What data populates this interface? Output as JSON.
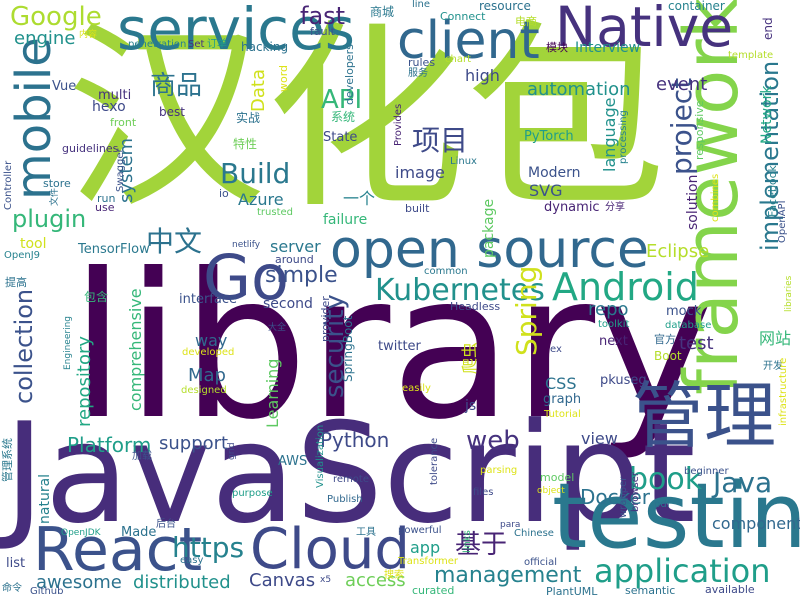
{
  "words": [
    {
      "text": "library",
      "color": "#440154",
      "rotate": false
    },
    {
      "text": "JavaScript",
      "color": "#472d7b",
      "rotate": false
    },
    {
      "text": "汉化包",
      "color": "#a2d43a",
      "rotate": false
    },
    {
      "text": "framework",
      "color": "#84d44b",
      "rotate": true
    },
    {
      "text": "testing",
      "color": "#2a788e",
      "rotate": false
    },
    {
      "text": "open source",
      "color": "#31688e",
      "rotate": false
    },
    {
      "text": "管理",
      "color": "#3b528b",
      "rotate": false
    },
    {
      "text": "Go",
      "color": "#3e4a89",
      "rotate": false
    },
    {
      "text": "client",
      "color": "#31688e",
      "rotate": false
    },
    {
      "text": "services",
      "color": "#2a788e",
      "rotate": false
    },
    {
      "text": "Native",
      "color": "#46327e",
      "rotate": false
    },
    {
      "text": "React",
      "color": "#3b528b",
      "rotate": false
    },
    {
      "text": "Cloud",
      "color": "#3e4a89",
      "rotate": false
    },
    {
      "text": "mobile",
      "color": "#2c728e",
      "rotate": true
    },
    {
      "text": "Android",
      "color": "#22a884",
      "rotate": false
    },
    {
      "text": "Kubernetes",
      "color": "#21918c",
      "rotate": false
    },
    {
      "text": "application",
      "color": "#1f9e89",
      "rotate": false
    },
    {
      "text": "Google",
      "color": "#addc30",
      "rotate": false
    },
    {
      "text": "API",
      "color": "#35b779",
      "rotate": false
    },
    {
      "text": "Build",
      "color": "#2a788e",
      "rotate": false
    },
    {
      "text": "security",
      "color": "#3b528b",
      "rotate": true
    },
    {
      "text": "book",
      "color": "#1f9e89",
      "rotate": false
    },
    {
      "text": "Java",
      "color": "#2c728e",
      "rotate": false
    },
    {
      "text": "https",
      "color": "#26828e",
      "rotate": false
    },
    {
      "text": "基于",
      "color": "#482475",
      "rotate": false
    },
    {
      "text": "项目",
      "color": "#3e4a89",
      "rotate": false
    },
    {
      "text": "中文",
      "color": "#2c728e",
      "rotate": false
    },
    {
      "text": "商品",
      "color": "#2c728e",
      "rotate": false
    },
    {
      "text": "simple",
      "color": "#3b528b",
      "rotate": false
    },
    {
      "text": "collection",
      "color": "#3b528b",
      "rotate": true
    },
    {
      "text": "project",
      "color": "#3b528b",
      "rotate": true
    },
    {
      "text": "implementation",
      "color": "#2a788e",
      "rotate": true
    },
    {
      "text": "management",
      "color": "#26828e",
      "rotate": false
    },
    {
      "text": "Spring",
      "color": "#d0e11c",
      "rotate": true
    },
    {
      "text": "fast",
      "color": "#482475",
      "rotate": false
    },
    {
      "text": "web",
      "color": "#46327e",
      "rotate": false
    },
    {
      "text": "plugin",
      "color": "#35b779",
      "rotate": false
    },
    {
      "text": "Docker",
      "color": "#2c728e",
      "rotate": false
    },
    {
      "text": "Python",
      "color": "#3e4a89",
      "rotate": false
    },
    {
      "text": "Platform",
      "color": "#1f9e89",
      "rotate": false
    },
    {
      "text": "automation",
      "color": "#21918c",
      "rotate": false
    },
    {
      "text": "engine",
      "color": "#21918c",
      "rotate": false
    },
    {
      "text": "repository",
      "color": "#22a884",
      "rotate": true
    },
    {
      "text": "event",
      "color": "#46327e",
      "rotate": false
    },
    {
      "text": "test",
      "color": "#46327e",
      "rotate": false
    },
    {
      "text": "Canvas",
      "color": "#3e4a89",
      "rotate": false
    },
    {
      "text": "distributed",
      "color": "#21918c",
      "rotate": false
    },
    {
      "text": "awesome",
      "color": "#2c728e",
      "rotate": false
    },
    {
      "text": "system",
      "color": "#2c728e",
      "rotate": true
    },
    {
      "text": "server",
      "color": "#2a788e",
      "rotate": false
    },
    {
      "text": "Data",
      "color": "#d0e11c",
      "rotate": true
    },
    {
      "text": "image",
      "color": "#3e4a89",
      "rotate": false
    },
    {
      "text": "Eclipse",
      "color": "#b5de2b",
      "rotate": false
    },
    {
      "text": "access",
      "color": "#6ece58",
      "rotate": false
    },
    {
      "text": "Map",
      "color": "#31688e",
      "rotate": false
    },
    {
      "text": "support",
      "color": "#3b528b",
      "rotate": false
    },
    {
      "text": "repo",
      "color": "#2a788e",
      "rotate": false
    },
    {
      "text": "view",
      "color": "#3e4a89",
      "rotate": false
    },
    {
      "text": "component",
      "color": "#31688e",
      "rotate": false
    },
    {
      "text": "Azure",
      "color": "#2a788e",
      "rotate": false
    },
    {
      "text": "comprehensive",
      "color": "#35b779",
      "rotate": true
    },
    {
      "text": "natural",
      "color": "#26828e",
      "rotate": true
    },
    {
      "text": "language",
      "color": "#21918c",
      "rotate": true
    },
    {
      "text": "SVG",
      "color": "#3b528b",
      "rotate": false
    },
    {
      "text": "app",
      "color": "#1f9e89",
      "rotate": false
    },
    {
      "text": "CSS",
      "color": "#2c728e",
      "rotate": false
    },
    {
      "text": "Learning",
      "color": "#5ec962",
      "rotate": true
    },
    {
      "text": "网站",
      "color": "#35b779",
      "rotate": false
    },
    {
      "text": "爬虫",
      "color": "#d0e11c",
      "rotate": true
    },
    {
      "text": "一个",
      "color": "#26828e",
      "rotate": false
    },
    {
      "text": "way",
      "color": "#31688e",
      "rotate": false
    },
    {
      "text": "high",
      "color": "#3e4a89",
      "rotate": false
    },
    {
      "text": "Network",
      "color": "#22a884",
      "rotate": true
    },
    {
      "text": "Interview",
      "color": "#21918c",
      "rotate": false
    },
    {
      "text": "second",
      "color": "#3e4a89",
      "rotate": false
    },
    {
      "text": "SpringBoot",
      "color": "#2c728e",
      "rotate": true
    },
    {
      "text": "tool",
      "color": "#d0e11c",
      "rotate": false
    },
    {
      "text": "failure",
      "color": "#35b779",
      "rotate": false
    },
    {
      "text": "Modern",
      "color": "#3b528b",
      "rotate": false
    },
    {
      "text": "solution",
      "color": "#482475",
      "rotate": true
    },
    {
      "text": "package",
      "color": "#5ec962",
      "rotate": true
    },
    {
      "text": "js",
      "color": "#3e4a89",
      "rotate": false
    },
    {
      "text": "hexo",
      "color": "#3e4a89",
      "rotate": false
    },
    {
      "text": "TensorFlow",
      "color": "#2a788e",
      "rotate": false
    },
    {
      "text": "multi",
      "color": "#46327e",
      "rotate": false
    },
    {
      "text": "PyTorch",
      "color": "#1f9e89",
      "rotate": false
    },
    {
      "text": "State",
      "color": "#3e4a89",
      "rotate": false
    },
    {
      "text": "Vue",
      "color": "#3b528b",
      "rotate": false
    },
    {
      "text": "next",
      "color": "#482475",
      "rotate": false
    },
    {
      "text": "twitter",
      "color": "#3e4a89",
      "rotate": false
    },
    {
      "text": "mock",
      "color": "#3b528b",
      "rotate": false
    },
    {
      "text": "dynamic",
      "color": "#482475",
      "rotate": false
    },
    {
      "text": "interface",
      "color": "#3b528b",
      "rotate": false
    },
    {
      "text": "AWS",
      "color": "#2c728e",
      "rotate": false
    },
    {
      "text": "pkuseg",
      "color": "#3e4a89",
      "rotate": false
    },
    {
      "text": "graph",
      "color": "#31688e",
      "rotate": false
    },
    {
      "text": "Made",
      "color": "#2c728e",
      "rotate": false
    },
    {
      "text": "list",
      "color": "#3e4a89",
      "rotate": false
    },
    {
      "text": "hacking",
      "color": "#2c728e",
      "rotate": false
    },
    {
      "text": "best",
      "color": "#46327e",
      "rotate": false
    },
    {
      "text": "实战",
      "color": "#2c728e",
      "rotate": false
    },
    {
      "text": "系统",
      "color": "#35b779",
      "rotate": false
    },
    {
      "text": "特性",
      "color": "#6ece58",
      "rotate": false
    },
    {
      "text": "商城",
      "color": "#2a788e",
      "rotate": false
    },
    {
      "text": "包含",
      "color": "#35b779",
      "rotate": false
    },
    {
      "text": "管理系统",
      "color": "#2a788e",
      "rotate": true
    },
    {
      "text": "官方",
      "color": "#31688e",
      "rotate": false
    },
    {
      "text": "Boot",
      "color": "#b5de2b",
      "rotate": false
    },
    {
      "text": "resource",
      "color": "#2c728e",
      "rotate": false
    },
    {
      "text": "container",
      "color": "#26828e",
      "rotate": false
    },
    {
      "text": "developers",
      "color": "#2c728e",
      "rotate": true
    },
    {
      "text": "Connect",
      "color": "#21918c",
      "rotate": false
    },
    {
      "text": "模块",
      "color": "#440154",
      "rotate": false
    },
    {
      "text": "end",
      "color": "#46327e",
      "rotate": true
    },
    {
      "text": "电商",
      "color": "#b5de2b",
      "rotate": false
    },
    {
      "text": "rules",
      "color": "#3b528b",
      "rotate": false
    },
    {
      "text": "服务",
      "color": "#2c728e",
      "rotate": false
    },
    {
      "text": "front",
      "color": "#6ece58",
      "rotate": false
    },
    {
      "text": "word",
      "color": "#dde318",
      "rotate": true
    },
    {
      "text": "fault",
      "color": "#3b528b",
      "rotate": false
    },
    {
      "text": "Controller",
      "color": "#3b528b",
      "rotate": true
    },
    {
      "text": "guidelines",
      "color": "#46327e",
      "rotate": false
    },
    {
      "text": "Swagger",
      "color": "#3b528b",
      "rotate": true
    },
    {
      "text": "store",
      "color": "#2c728e",
      "rotate": false
    },
    {
      "text": "run",
      "color": "#2c728e",
      "rotate": false
    },
    {
      "text": "use",
      "color": "#482475",
      "rotate": false
    },
    {
      "text": "io",
      "color": "#3b528b",
      "rotate": false
    },
    {
      "text": "trusted",
      "color": "#5ec962",
      "rotate": false
    },
    {
      "text": "Ethical",
      "color": "#a2d43a",
      "rotate": false
    },
    {
      "text": "built",
      "color": "#3e4a89",
      "rotate": false
    },
    {
      "text": "Linux",
      "color": "#2a788e",
      "rotate": false
    },
    {
      "text": "processing",
      "color": "#26828e",
      "rotate": true
    },
    {
      "text": "responsive",
      "color": "#5ec962",
      "rotate": true
    },
    {
      "text": "Facebook",
      "color": "#26828e",
      "rotate": true
    },
    {
      "text": "OpenAPI",
      "color": "#3b528b",
      "rotate": true
    },
    {
      "text": "combines",
      "color": "#dde318",
      "rotate": true
    },
    {
      "text": "分享",
      "color": "#482475",
      "rotate": false
    },
    {
      "text": "template",
      "color": "#b5de2b",
      "rotate": false
    },
    {
      "text": "Provides",
      "color": "#482475",
      "rotate": true
    },
    {
      "text": "chart",
      "color": "#b5de2b",
      "rotate": false
    },
    {
      "text": "line",
      "color": "#2c728e",
      "rotate": false
    },
    {
      "text": "Set",
      "color": "#46327e",
      "rotate": false
    },
    {
      "text": "订单",
      "color": "#1f9e89",
      "rotate": false
    },
    {
      "text": "penetration",
      "color": "#26828e",
      "rotate": false
    },
    {
      "text": "内容",
      "color": "#dde318",
      "rotate": false
    },
    {
      "text": "文件",
      "color": "#2c728e",
      "rotate": true
    },
    {
      "text": "OpenJ9",
      "color": "#26828e",
      "rotate": false
    },
    {
      "text": "提高",
      "color": "#2c728e",
      "rotate": false
    },
    {
      "text": "netlify",
      "color": "#3b528b",
      "rotate": false
    },
    {
      "text": "around",
      "color": "#3e4a89",
      "rotate": false
    },
    {
      "text": "common",
      "color": "#2a788e",
      "rotate": false
    },
    {
      "text": "Headless",
      "color": "#3e4a89",
      "rotate": false
    },
    {
      "text": "toolkit",
      "color": "#1f9e89",
      "rotate": false
    },
    {
      "text": "database",
      "color": "#1f9e89",
      "rotate": false
    },
    {
      "text": "libraries",
      "color": "#b5de2b",
      "rotate": true
    },
    {
      "text": "开发",
      "color": "#2c728e",
      "rotate": false
    },
    {
      "text": "大全",
      "color": "#3b528b",
      "rotate": false
    },
    {
      "text": "developed",
      "color": "#dde318",
      "rotate": false
    },
    {
      "text": "designed",
      "color": "#b5de2b",
      "rotate": false
    },
    {
      "text": "provider",
      "color": "#3e4a89",
      "rotate": true
    },
    {
      "text": "Visualization",
      "color": "#21918c",
      "rotate": true
    },
    {
      "text": "easily",
      "color": "#dde318",
      "rotate": false
    },
    {
      "text": "Tutorial",
      "color": "#dde318",
      "rotate": false
    },
    {
      "text": "ex",
      "color": "#3e4a89",
      "rotate": false
    },
    {
      "text": "Engineering",
      "color": "#26828e",
      "rotate": true
    },
    {
      "text": "加载",
      "color": "#3b528b",
      "rotate": false
    },
    {
      "text": "grid",
      "color": "#3e4a89",
      "rotate": true
    },
    {
      "text": "purpose",
      "color": "#1f9e89",
      "rotate": false
    },
    {
      "text": "remote",
      "color": "#3e4a89",
      "rotate": false
    },
    {
      "text": "Publish",
      "color": "#31688e",
      "rotate": false
    },
    {
      "text": "parsing",
      "color": "#dde318",
      "rotate": false
    },
    {
      "text": "model",
      "color": "#5ec962",
      "rotate": false
    },
    {
      "text": "tolerance",
      "color": "#3e4a89",
      "rotate": true
    },
    {
      "text": "infrastructure",
      "color": "#dde318",
      "rotate": true
    },
    {
      "text": "wrapper",
      "color": "#3b528b",
      "rotate": true
    },
    {
      "text": "browser",
      "color": "#46327e",
      "rotate": true
    },
    {
      "text": "pdf",
      "color": "#2c728e",
      "rotate": false
    },
    {
      "text": "beginner",
      "color": "#3b528b",
      "rotate": false
    },
    {
      "text": "files",
      "color": "#3e4a89",
      "rotate": false
    },
    {
      "text": "object",
      "color": "#dde318",
      "rotate": false
    },
    {
      "text": "para",
      "color": "#3e4a89",
      "rotate": false
    },
    {
      "text": "Chinese",
      "color": "#2c728e",
      "rotate": false
    },
    {
      "text": "后台",
      "color": "#3b528b",
      "rotate": false
    },
    {
      "text": "工具",
      "color": "#2c728e",
      "rotate": false
    },
    {
      "text": "powerful",
      "color": "#3b528b",
      "rotate": false
    },
    {
      "text": "links",
      "color": "#35b779",
      "rotate": true
    },
    {
      "text": "official",
      "color": "#3b528b",
      "rotate": false
    },
    {
      "text": "Transformer",
      "color": "#dde318",
      "rotate": false
    },
    {
      "text": "OpenJDK",
      "color": "#1f9e89",
      "rotate": false
    },
    {
      "text": "easy",
      "color": "#2c728e",
      "rotate": false
    },
    {
      "text": "x5",
      "color": "#3e4a89",
      "rotate": false
    },
    {
      "text": "搜索",
      "color": "#dde318",
      "rotate": false
    },
    {
      "text": "curated",
      "color": "#35b779",
      "rotate": false
    },
    {
      "text": "PlantUML",
      "color": "#2c728e",
      "rotate": false
    },
    {
      "text": "semantic",
      "color": "#2c728e",
      "rotate": false
    },
    {
      "text": "available",
      "color": "#3e4a89",
      "rotate": false
    },
    {
      "text": "命令",
      "color": "#2c728e",
      "rotate": false
    },
    {
      "text": "Github",
      "color": "#3b528b",
      "rotate": false
    }
  ]
}
